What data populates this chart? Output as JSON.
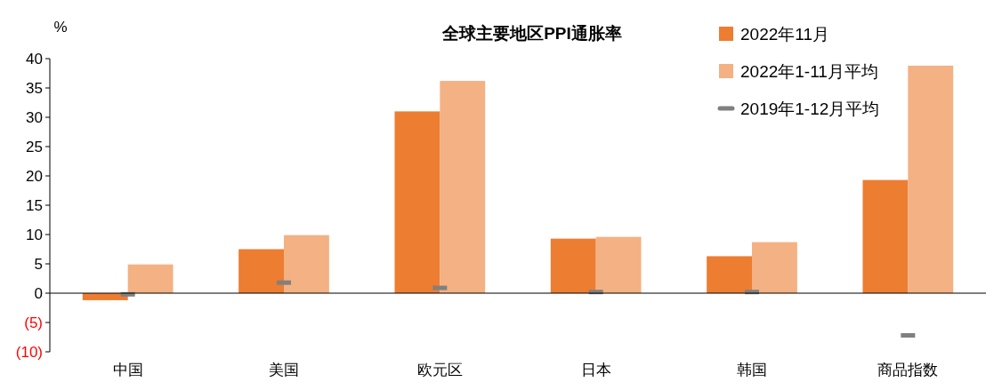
{
  "chart_data": {
    "type": "bar",
    "title": "全球主要地区PPI通胀率",
    "ylabel": "%",
    "categories": [
      "中国",
      "美国",
      "欧元区",
      "日本",
      "韩国",
      "商品指数"
    ],
    "series": [
      {
        "name": "2022年11月",
        "color": "#ed7d31",
        "values": [
          -1.2,
          7.5,
          31.0,
          9.3,
          6.3,
          19.3
        ]
      },
      {
        "name": "2022年1-11月平均",
        "color": "#f4b183",
        "values": [
          4.9,
          9.9,
          36.2,
          9.6,
          8.7,
          38.8
        ]
      },
      {
        "name": "2019年1-12月平均",
        "color": "#808080",
        "type": "scatter",
        "marker": "square",
        "x": [
          "中国",
          "美国",
          "欧元区",
          "日本",
          "韩国",
          "商品指数"
        ],
        "values": [
          -0.2,
          1.8,
          0.9,
          0.2,
          0.2,
          -7.2
        ]
      }
    ],
    "ylim": [
      -10,
      40
    ],
    "yticks": [
      {
        "value": -10,
        "label": "(10)"
      },
      {
        "value": -5,
        "label": "(5)"
      },
      0,
      5,
      10,
      15,
      20,
      25,
      30,
      35,
      40
    ],
    "legend": "top right"
  }
}
